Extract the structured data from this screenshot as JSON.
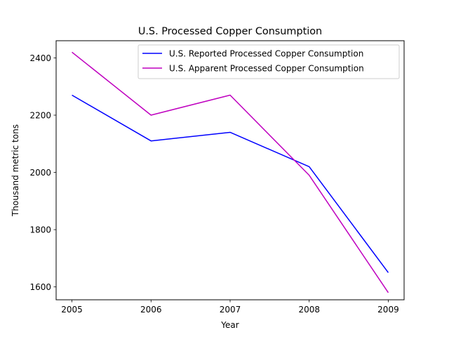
{
  "chart_data": {
    "type": "line",
    "title": "U.S. Processed Copper Consumption",
    "xlabel": "Year",
    "ylabel": "Thousand metric tons",
    "x": [
      2005,
      2006,
      2007,
      2008,
      2009
    ],
    "xlim": [
      2004.8,
      2009.2
    ],
    "ylim": [
      1555,
      2460
    ],
    "yticks": [
      1600,
      1800,
      2000,
      2200,
      2400
    ],
    "legend_position": "top-right",
    "grid": false,
    "series": [
      {
        "name": "U.S. Reported Processed Copper Consumption",
        "color": "#0000ff",
        "values": [
          2270,
          2110,
          2140,
          2020,
          1650
        ]
      },
      {
        "name": "U.S. Apparent Processed Copper Consumption",
        "color": "#bf00bf",
        "values": [
          2420,
          2200,
          2270,
          1990,
          1580
        ]
      }
    ]
  }
}
